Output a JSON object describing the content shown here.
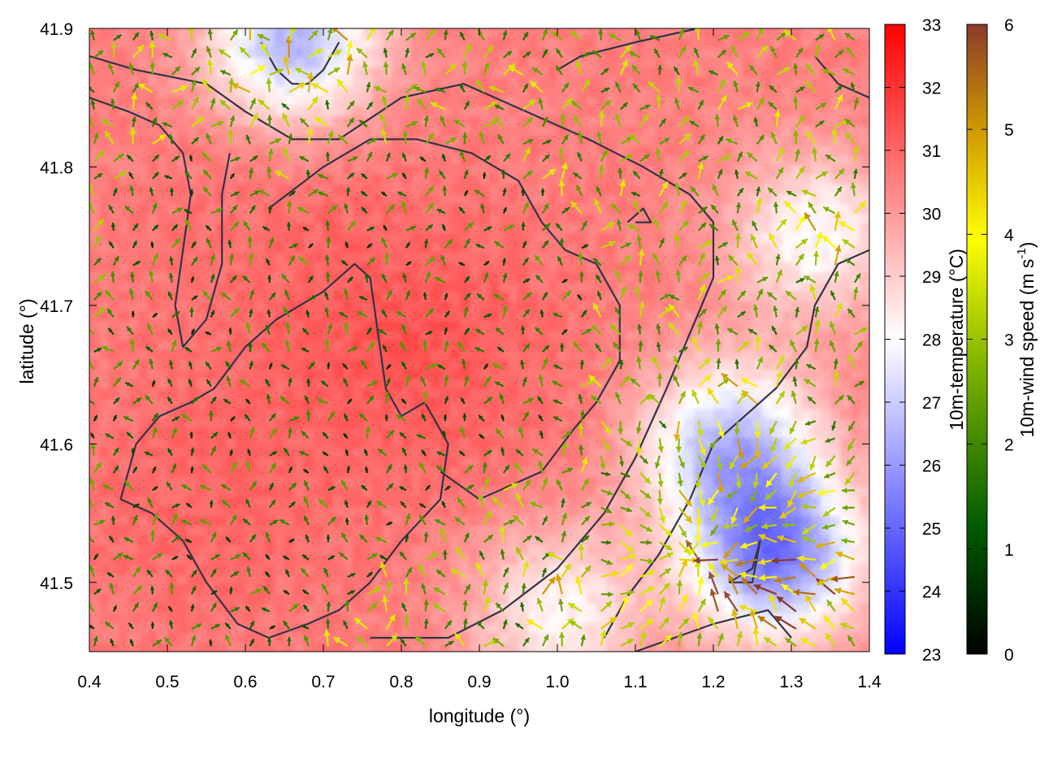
{
  "chart_data": {
    "type": "heatmap",
    "title": "",
    "xlabel": "longitude (°)",
    "ylabel": "latitude (°)",
    "xlim": [
      0.4,
      1.4
    ],
    "ylim": [
      41.45,
      41.9
    ],
    "xticks": [
      "0.4",
      "0.5",
      "0.6",
      "0.7",
      "0.8",
      "0.9",
      "1.0",
      "1.1",
      "1.2",
      "1.3",
      "1.4"
    ],
    "yticks": [
      "41.5",
      "41.6",
      "41.7",
      "41.8",
      "41.9"
    ],
    "grid": false,
    "temperature_colorbar": {
      "label": "10m-temperature (°C)",
      "range": [
        23,
        33
      ],
      "ticks": [
        "23",
        "24",
        "25",
        "26",
        "27",
        "28",
        "29",
        "30",
        "31",
        "32",
        "33"
      ],
      "colors": [
        "#0000ff",
        "#ffffff",
        "#ff0000"
      ]
    },
    "wind_colorbar": {
      "label_prefix": "10m-wind speed (m s",
      "label_exp": "-1",
      "label_suffix": ")",
      "range": [
        0,
        6
      ],
      "ticks": [
        "0",
        "1",
        "2",
        "3",
        "4",
        "5",
        "6"
      ],
      "colors": [
        "#000000",
        "#005a00",
        "#7ab000",
        "#ffff00",
        "#d09a00",
        "#8b3a2a"
      ]
    },
    "temperature_field": {
      "background_c": 30.5,
      "warm_cores": [
        {
          "lon": 0.82,
          "lat": 41.67,
          "temp_c": 31.3
        },
        {
          "lon": 0.55,
          "lat": 41.56,
          "temp_c": 31.0
        },
        {
          "lon": 0.62,
          "lat": 41.78,
          "temp_c": 30.8
        }
      ],
      "cool_regions": [
        {
          "lon": 1.28,
          "lat": 41.52,
          "temp_c": 25.5
        },
        {
          "lon": 1.22,
          "lat": 41.6,
          "temp_c": 26.8
        },
        {
          "lon": 0.66,
          "lat": 41.89,
          "temp_c": 26.5
        },
        {
          "lon": 1.33,
          "lat": 41.75,
          "temp_c": 28.0
        },
        {
          "lon": 1.0,
          "lat": 41.48,
          "temp_c": 28.2
        }
      ]
    },
    "contours": [
      [
        [
          0.44,
          41.56
        ],
        [
          0.46,
          41.6
        ],
        [
          0.49,
          41.62
        ],
        [
          0.53,
          41.63
        ],
        [
          0.56,
          41.64
        ],
        [
          0.6,
          41.67
        ],
        [
          0.64,
          41.69
        ],
        [
          0.7,
          41.71
        ],
        [
          0.74,
          41.73
        ],
        [
          0.76,
          41.72
        ],
        [
          0.77,
          41.68
        ],
        [
          0.78,
          41.64
        ],
        [
          0.8,
          41.62
        ],
        [
          0.83,
          41.63
        ],
        [
          0.86,
          41.6
        ],
        [
          0.85,
          41.56
        ],
        [
          0.8,
          41.53
        ],
        [
          0.76,
          41.5
        ],
        [
          0.72,
          41.48
        ],
        [
          0.68,
          41.47
        ],
        [
          0.63,
          41.46
        ],
        [
          0.59,
          41.47
        ],
        [
          0.55,
          41.5
        ],
        [
          0.52,
          41.53
        ],
        [
          0.48,
          41.55
        ],
        [
          0.44,
          41.56
        ]
      ],
      [
        [
          0.4,
          41.85
        ],
        [
          0.45,
          41.84
        ],
        [
          0.49,
          41.83
        ],
        [
          0.52,
          41.81
        ],
        [
          0.53,
          41.78
        ],
        [
          0.52,
          41.74
        ],
        [
          0.51,
          41.7
        ],
        [
          0.52,
          41.67
        ],
        [
          0.55,
          41.69
        ],
        [
          0.57,
          41.73
        ],
        [
          0.57,
          41.78
        ],
        [
          0.58,
          41.81
        ]
      ],
      [
        [
          0.63,
          41.77
        ],
        [
          0.7,
          41.8
        ],
        [
          0.76,
          41.82
        ],
        [
          0.82,
          41.82
        ],
        [
          0.89,
          41.81
        ],
        [
          0.95,
          41.79
        ],
        [
          0.98,
          41.76
        ],
        [
          1.01,
          41.74
        ],
        [
          1.05,
          41.73
        ],
        [
          1.08,
          41.7
        ],
        [
          1.08,
          41.66
        ],
        [
          1.05,
          41.63
        ],
        [
          1.02,
          41.61
        ],
        [
          0.98,
          41.58
        ],
        [
          0.94,
          41.57
        ],
        [
          0.9,
          41.56
        ],
        [
          0.85,
          41.58
        ]
      ],
      [
        [
          0.4,
          41.88
        ],
        [
          0.46,
          41.87
        ],
        [
          0.55,
          41.86
        ],
        [
          0.6,
          41.84
        ],
        [
          0.66,
          41.82
        ],
        [
          0.72,
          41.82
        ],
        [
          0.8,
          41.85
        ],
        [
          0.88,
          41.86
        ],
        [
          0.96,
          41.84
        ],
        [
          1.04,
          41.82
        ],
        [
          1.11,
          41.8
        ],
        [
          1.17,
          41.78
        ],
        [
          1.2,
          41.76
        ],
        [
          1.2,
          41.72
        ],
        [
          1.17,
          41.68
        ],
        [
          1.14,
          41.64
        ],
        [
          1.1,
          41.59
        ],
        [
          1.06,
          41.55
        ],
        [
          1.0,
          41.51
        ],
        [
          0.93,
          41.48
        ],
        [
          0.86,
          41.46
        ],
        [
          0.8,
          41.46
        ],
        [
          0.76,
          41.46
        ]
      ],
      [
        [
          0.62,
          41.89
        ],
        [
          0.64,
          41.87
        ],
        [
          0.66,
          41.86
        ],
        [
          0.68,
          41.86
        ],
        [
          0.7,
          41.87
        ],
        [
          0.72,
          41.89
        ]
      ],
      [
        [
          1.09,
          41.76
        ],
        [
          1.11,
          41.77
        ],
        [
          1.12,
          41.76
        ],
        [
          1.1,
          41.76
        ]
      ],
      [
        [
          1.4,
          41.74
        ],
        [
          1.36,
          41.73
        ],
        [
          1.33,
          41.7
        ],
        [
          1.32,
          41.67
        ],
        [
          1.28,
          41.64
        ],
        [
          1.24,
          41.62
        ],
        [
          1.2,
          41.6
        ],
        [
          1.17,
          41.56
        ],
        [
          1.13,
          41.52
        ],
        [
          1.09,
          41.49
        ],
        [
          1.06,
          41.46
        ]
      ],
      [
        [
          1.22,
          41.5
        ],
        [
          1.25,
          41.51
        ],
        [
          1.26,
          41.53
        ],
        [
          1.25,
          41.5
        ],
        [
          1.22,
          41.5
        ]
      ],
      [
        [
          1.1,
          41.45
        ],
        [
          1.15,
          41.46
        ],
        [
          1.2,
          41.47
        ],
        [
          1.27,
          41.48
        ],
        [
          1.3,
          41.46
        ]
      ],
      [
        [
          1.0,
          41.87
        ],
        [
          1.03,
          41.88
        ],
        [
          1.1,
          41.89
        ],
        [
          1.18,
          41.9
        ]
      ],
      [
        [
          1.33,
          41.88
        ],
        [
          1.36,
          41.86
        ],
        [
          1.4,
          41.85
        ]
      ]
    ],
    "wind_field": {
      "grid_spacing_deg": {
        "lon": 0.025,
        "lat": 0.0125
      },
      "typical_speed_ms": {
        "warm_core": 1.5,
        "surroundings": 2.5,
        "cool_southeast": 4.0,
        "max": 6.0
      },
      "mean_direction": "toward north with rotation/convergence in the southeast"
    }
  }
}
